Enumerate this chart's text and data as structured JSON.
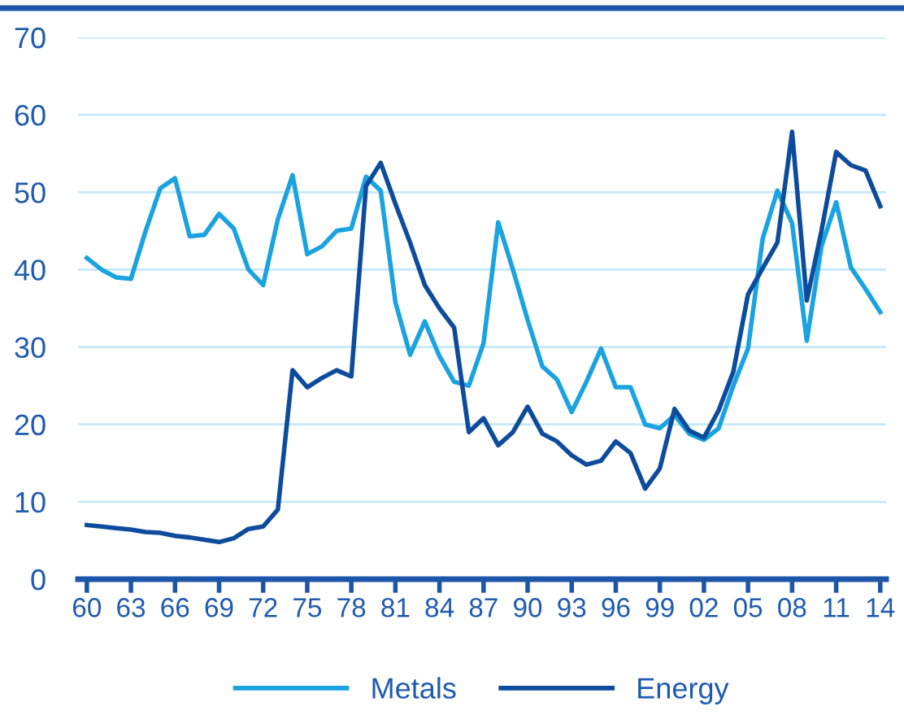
{
  "chart_data": {
    "type": "line",
    "categories": [
      "60",
      null,
      null,
      "63",
      null,
      null,
      "66",
      null,
      null,
      "69",
      null,
      null,
      "72",
      null,
      null,
      "75",
      null,
      null,
      "78",
      null,
      null,
      "81",
      null,
      null,
      "84",
      null,
      null,
      "87",
      null,
      null,
      "90",
      null,
      null,
      "93",
      null,
      null,
      "96",
      null,
      null,
      "99",
      null,
      null,
      "02",
      null,
      null,
      "05",
      null,
      null,
      "08",
      null,
      null,
      "11",
      null,
      null,
      "14"
    ],
    "series": [
      {
        "name": "Metals",
        "color": "#1aa3e0",
        "values": [
          41.5,
          40,
          39,
          38.8,
          45,
          50.5,
          51.8,
          44.3,
          44.5,
          47.2,
          45.3,
          40,
          38,
          46.5,
          52.2,
          42,
          43,
          45,
          45.3,
          52,
          50.2,
          35.8,
          29,
          33.3,
          28.8,
          25.5,
          25,
          30.5,
          46.1,
          40,
          33.5,
          27.5,
          25.8,
          21.6,
          25.5,
          29.8,
          24.8,
          24.8,
          20,
          19.5,
          21.2,
          18.8,
          18,
          19.5,
          25,
          29.8,
          44,
          50.2,
          46,
          30.8,
          43,
          48.7,
          40.3,
          37.5,
          34.5
        ]
      },
      {
        "name": "Energy",
        "color": "#0d4c9c",
        "values": [
          7,
          6.8,
          6.6,
          6.4,
          6.1,
          6,
          5.6,
          5.4,
          5.1,
          4.8,
          5.3,
          6.5,
          6.8,
          9,
          27,
          24.8,
          26,
          27,
          26.2,
          50.8,
          53.8,
          48.5,
          43.5,
          38,
          35,
          32.5,
          19,
          20.8,
          17.3,
          19,
          22.3,
          18.8,
          17.8,
          16,
          14.8,
          15.3,
          17.8,
          16.3,
          11.7,
          14.3,
          22,
          19.2,
          18.3,
          21.8,
          26.8,
          36.8,
          40.2,
          43.5,
          57.8,
          36,
          45,
          55.2,
          53.5,
          52.8,
          48.2
        ]
      }
    ],
    "ylim": [
      0,
      70
    ],
    "yticks": [
      0,
      10,
      20,
      30,
      40,
      50,
      60,
      70
    ],
    "grid": "y",
    "legend": "bottom",
    "marker": "none",
    "line_style": "solid"
  }
}
